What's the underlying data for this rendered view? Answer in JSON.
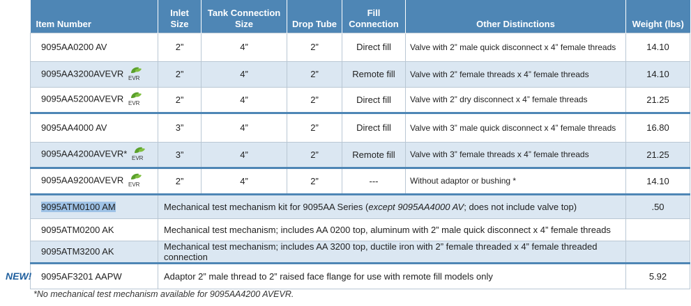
{
  "header": {
    "item_number": "Item Number",
    "inlet_size": "Inlet Size",
    "tank_connection_size": "Tank Connection Size",
    "drop_tube": "Drop Tube",
    "fill_connection": "Fill Connection",
    "other_distinctions": "Other Distinctions",
    "weight": "Weight (lbs)"
  },
  "evr_label": "EVR",
  "rows": [
    {
      "item": "9095AA0200 AV",
      "inlet": "2”",
      "tank": "4”",
      "drop": "2”",
      "fill": "Direct fill",
      "dist": "Valve with 2” male quick disconnect x 4” female threads",
      "weight": "14.10"
    },
    {
      "item": "9095AA3200AVEVR",
      "inlet": "2”",
      "tank": "4”",
      "drop": "2”",
      "fill": "Remote fill",
      "dist": "Valve with 2” female threads x 4” female threads",
      "weight": "14.10"
    },
    {
      "item": "9095AA5200AVEVR",
      "inlet": "2”",
      "tank": "4”",
      "drop": "2”",
      "fill": "Direct fill",
      "dist": "Valve with 2” dry disconnect x 4” female threads",
      "weight": "21.25"
    },
    {
      "item": "9095AA4000 AV",
      "inlet": "3”",
      "tank": "4”",
      "drop": "2”",
      "fill": "Direct fill",
      "dist": "Valve with 3” male quick disconnect x 4” female threads",
      "weight": "16.80"
    },
    {
      "item": "9095AA4200AVEVR*",
      "inlet": "3”",
      "tank": "4”",
      "drop": "2”",
      "fill": "Remote fill",
      "dist": "Valve with 3” female threads x 4” female threads",
      "weight": "21.25"
    },
    {
      "item": "9095AA9200AVEVR",
      "inlet": "2”",
      "tank": "4”",
      "drop": "2”",
      "fill": "---",
      "dist": "Without adaptor or bushing *",
      "weight": "14.10"
    }
  ],
  "kit_rows": [
    {
      "item": "9095ATM0100 AM",
      "desc_pre": "Mechanical test mechanism kit for 9095AA Series (",
      "desc_italic": "except 9095AA4000 AV",
      "desc_post": "; does not include valve top)",
      "weight": ".50"
    },
    {
      "item": "9095ATM0200 AK",
      "desc": "Mechanical test mechanism; includes AA 0200 top, aluminum with 2” male quick disconnect x 4” female threads",
      "weight": ""
    },
    {
      "item": "9095ATM3200 AK",
      "desc": "Mechanical test mechanism; includes AA 3200 top, ductile iron with 2” female threaded x 4” female threaded connection",
      "weight": ""
    },
    {
      "item": "9095AF3201 AAPW",
      "desc": "Adaptor 2” male thread to 2” raised face flange for use with remote fill models only",
      "weight": "5.92"
    }
  ],
  "new_label": "NEW!",
  "footnote": "*No mechanical test mechanism available for 9095AA4200 AVEVR.",
  "colors": {
    "header_blue": "#4e86b5",
    "row_shade": "#dbe7f2",
    "evr_green": "#5aa02c",
    "new_label": "#1f5f9e"
  }
}
